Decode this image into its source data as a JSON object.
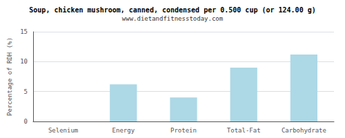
{
  "chart_data": {
    "type": "bar",
    "title": "Soup, chicken mushroom, canned, condensed per 0.500 cup (or 124.00 g)",
    "subtitle": "www.dietandfitnesstoday.com",
    "categories": [
      "Selenium",
      "Energy",
      "Protein",
      "Total-Fat",
      "Carbohydrate"
    ],
    "values": [
      0.0,
      6.2,
      4.0,
      9.0,
      11.2
    ],
    "color": "#add8e6",
    "ylabel": "Percentage of RDH (%)",
    "ylim": [
      0,
      15
    ],
    "yticks": [
      0,
      5,
      10,
      15
    ],
    "grid": true
  }
}
